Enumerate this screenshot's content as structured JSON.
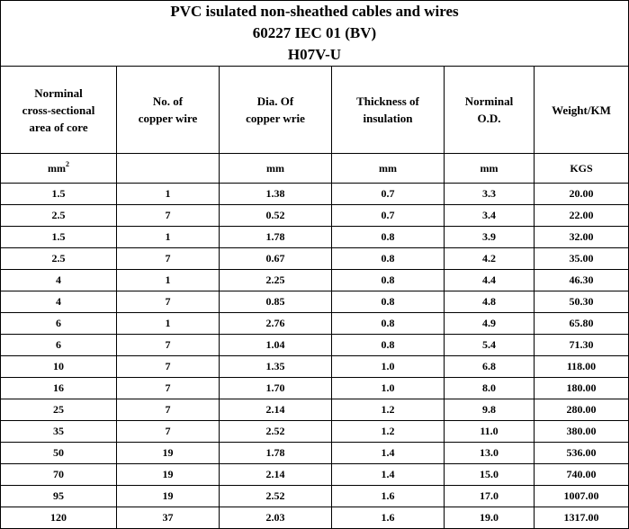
{
  "title": {
    "line1": "PVC isulated non-sheathed cables and wires",
    "line2": "60227 IEC 01 (BV)",
    "line3": "H07V-U"
  },
  "headers": {
    "col1": [
      "Norminal",
      "cross-sectional",
      "area of core"
    ],
    "col2": [
      "No. of",
      "copper wire"
    ],
    "col3": [
      "Dia. Of",
      "copper wrie"
    ],
    "col4": [
      "Thickness of",
      "insulation"
    ],
    "col5": [
      "Norminal",
      "O.D."
    ],
    "col6": [
      "Weight/KM"
    ]
  },
  "units": {
    "col1_base": "mm",
    "col1_exp": "2",
    "col2": "",
    "col3": "mm",
    "col4": "mm",
    "col5": "mm",
    "col6": "KGS"
  },
  "rows": [
    [
      "1.5",
      "1",
      "1.38",
      "0.7",
      "3.3",
      "20.00"
    ],
    [
      "2.5",
      "7",
      "0.52",
      "0.7",
      "3.4",
      "22.00"
    ],
    [
      "1.5",
      "1",
      "1.78",
      "0.8",
      "3.9",
      "32.00"
    ],
    [
      "2.5",
      "7",
      "0.67",
      "0.8",
      "4.2",
      "35.00"
    ],
    [
      "4",
      "1",
      "2.25",
      "0.8",
      "4.4",
      "46.30"
    ],
    [
      "4",
      "7",
      "0.85",
      "0.8",
      "4.8",
      "50.30"
    ],
    [
      "6",
      "1",
      "2.76",
      "0.8",
      "4.9",
      "65.80"
    ],
    [
      "6",
      "7",
      "1.04",
      "0.8",
      "5.4",
      "71.30"
    ],
    [
      "10",
      "7",
      "1.35",
      "1.0",
      "6.8",
      "118.00"
    ],
    [
      "16",
      "7",
      "1.70",
      "1.0",
      "8.0",
      "180.00"
    ],
    [
      "25",
      "7",
      "2.14",
      "1.2",
      "9.8",
      "280.00"
    ],
    [
      "35",
      "7",
      "2.52",
      "1.2",
      "11.0",
      "380.00"
    ],
    [
      "50",
      "19",
      "1.78",
      "1.4",
      "13.0",
      "536.00"
    ],
    [
      "70",
      "19",
      "2.14",
      "1.4",
      "15.0",
      "740.00"
    ],
    [
      "95",
      "19",
      "2.52",
      "1.6",
      "17.0",
      "1007.00"
    ],
    [
      "120",
      "37",
      "2.03",
      "1.6",
      "19.0",
      "1317.00"
    ]
  ]
}
